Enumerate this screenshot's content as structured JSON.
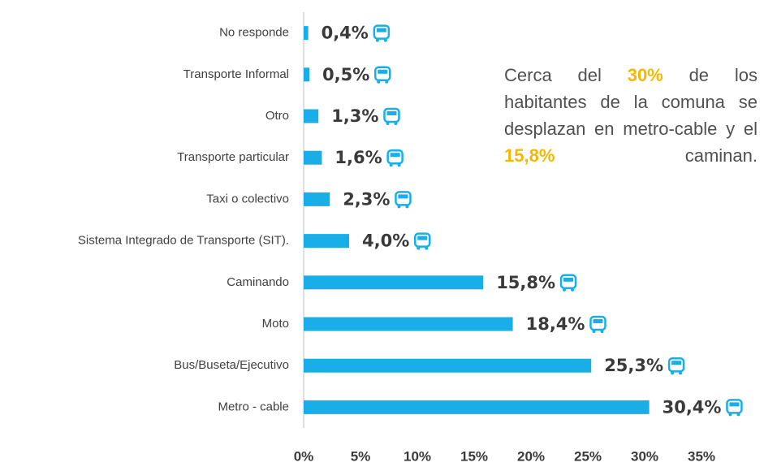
{
  "chart_data": {
    "type": "hbar",
    "categories": [
      "No responde",
      "Transporte Informal",
      "Otro",
      "Transporte particular",
      "Taxi o colectivo",
      "Sistema Integrado de Transporte (SIT).",
      "Caminando",
      "Moto",
      "Bus/Buseta/Ejecutivo",
      "Metro - cable"
    ],
    "values": [
      0.4,
      0.5,
      1.3,
      1.6,
      2.3,
      4.0,
      15.8,
      18.4,
      25.3,
      30.4
    ],
    "value_labels": [
      "0,4%",
      "0,5%",
      "1,3%",
      "1,6%",
      "2,3%",
      "4,0%",
      "15,8%",
      "18,4%",
      "25,3%",
      "30,4%"
    ],
    "color": "#1aaee8",
    "xlim": [
      0,
      35
    ],
    "xticks": [
      {
        "value": 0,
        "label": "0%"
      },
      {
        "value": 5,
        "label": "5%"
      },
      {
        "value": 10,
        "label": "10%"
      },
      {
        "value": 15,
        "label": "15%"
      },
      {
        "value": 20,
        "label": "20%"
      },
      {
        "value": 25,
        "label": "25%"
      },
      {
        "value": 30,
        "label": "30%"
      },
      {
        "value": 35,
        "label": "35%"
      }
    ],
    "annotation": [
      "Cerca del ",
      "30%",
      " de los habitantes de la comuna se desplazan en metro-cable y el ",
      "15,8%",
      " caminan."
    ]
  }
}
